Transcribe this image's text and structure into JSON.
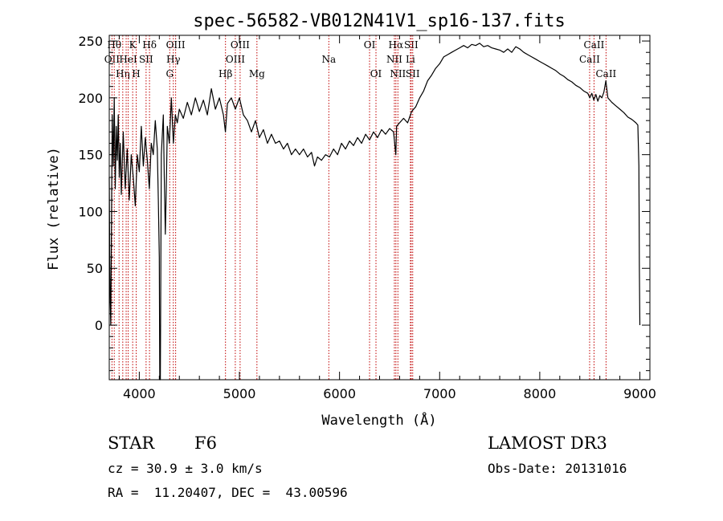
{
  "chart_data": {
    "type": "line",
    "title": "spec-56582-VB012N41V1_sp16-137.fits",
    "xlabel": "Wavelength (Å)",
    "ylabel": "Flux (relative)",
    "xlim": [
      3700,
      9100
    ],
    "ylim": [
      -48,
      255
    ],
    "x_ticks": [
      4000,
      5000,
      6000,
      7000,
      8000,
      9000
    ],
    "y_ticks": [
      0,
      50,
      100,
      150,
      200,
      250
    ],
    "series": [
      {
        "name": "flux",
        "points": [
          [
            3700,
            130
          ],
          [
            3705,
            60
          ],
          [
            3710,
            20
          ],
          [
            3715,
            0
          ],
          [
            3720,
            60
          ],
          [
            3730,
            185
          ],
          [
            3740,
            140
          ],
          [
            3750,
            200
          ],
          [
            3760,
            120
          ],
          [
            3770,
            175
          ],
          [
            3780,
            145
          ],
          [
            3790,
            185
          ],
          [
            3800,
            130
          ],
          [
            3810,
            160
          ],
          [
            3820,
            115
          ],
          [
            3840,
            170
          ],
          [
            3860,
            120
          ],
          [
            3880,
            155
          ],
          [
            3900,
            110
          ],
          [
            3920,
            150
          ],
          [
            3940,
            130
          ],
          [
            3960,
            105
          ],
          [
            3980,
            150
          ],
          [
            4000,
            135
          ],
          [
            4020,
            175
          ],
          [
            4040,
            140
          ],
          [
            4060,
            165
          ],
          [
            4080,
            145
          ],
          [
            4100,
            120
          ],
          [
            4120,
            160
          ],
          [
            4140,
            150
          ],
          [
            4160,
            180
          ],
          [
            4180,
            155
          ],
          [
            4190,
            110
          ],
          [
            4200,
            60
          ],
          [
            4205,
            -48
          ],
          [
            4210,
            -48
          ],
          [
            4215,
            50
          ],
          [
            4220,
            150
          ],
          [
            4240,
            185
          ],
          [
            4250,
            130
          ],
          [
            4260,
            80
          ],
          [
            4270,
            120
          ],
          [
            4280,
            175
          ],
          [
            4300,
            160
          ],
          [
            4320,
            200
          ],
          [
            4340,
            160
          ],
          [
            4360,
            185
          ],
          [
            4380,
            178
          ],
          [
            4400,
            190
          ],
          [
            4440,
            182
          ],
          [
            4480,
            196
          ],
          [
            4520,
            185
          ],
          [
            4560,
            200
          ],
          [
            4600,
            188
          ],
          [
            4640,
            198
          ],
          [
            4680,
            185
          ],
          [
            4720,
            208
          ],
          [
            4760,
            190
          ],
          [
            4800,
            200
          ],
          [
            4840,
            185
          ],
          [
            4860,
            170
          ],
          [
            4880,
            195
          ],
          [
            4920,
            200
          ],
          [
            4960,
            190
          ],
          [
            5000,
            200
          ],
          [
            5040,
            185
          ],
          [
            5080,
            180
          ],
          [
            5120,
            170
          ],
          [
            5160,
            180
          ],
          [
            5200,
            165
          ],
          [
            5240,
            172
          ],
          [
            5280,
            160
          ],
          [
            5320,
            168
          ],
          [
            5360,
            160
          ],
          [
            5400,
            162
          ],
          [
            5440,
            155
          ],
          [
            5480,
            160
          ],
          [
            5520,
            150
          ],
          [
            5560,
            155
          ],
          [
            5600,
            150
          ],
          [
            5640,
            155
          ],
          [
            5680,
            148
          ],
          [
            5720,
            152
          ],
          [
            5750,
            140
          ],
          [
            5780,
            148
          ],
          [
            5820,
            145
          ],
          [
            5860,
            150
          ],
          [
            5900,
            148
          ],
          [
            5940,
            155
          ],
          [
            5980,
            150
          ],
          [
            6020,
            160
          ],
          [
            6060,
            155
          ],
          [
            6100,
            162
          ],
          [
            6140,
            158
          ],
          [
            6180,
            165
          ],
          [
            6220,
            160
          ],
          [
            6260,
            168
          ],
          [
            6300,
            163
          ],
          [
            6340,
            170
          ],
          [
            6380,
            165
          ],
          [
            6420,
            172
          ],
          [
            6460,
            168
          ],
          [
            6500,
            173
          ],
          [
            6540,
            170
          ],
          [
            6562,
            150
          ],
          [
            6570,
            175
          ],
          [
            6600,
            178
          ],
          [
            6640,
            182
          ],
          [
            6680,
            178
          ],
          [
            6720,
            188
          ],
          [
            6760,
            192
          ],
          [
            6800,
            200
          ],
          [
            6840,
            206
          ],
          [
            6880,
            215
          ],
          [
            6920,
            220
          ],
          [
            6960,
            226
          ],
          [
            7000,
            230
          ],
          [
            7040,
            236
          ],
          [
            7080,
            238
          ],
          [
            7120,
            240
          ],
          [
            7160,
            242
          ],
          [
            7200,
            244
          ],
          [
            7240,
            246
          ],
          [
            7280,
            244
          ],
          [
            7320,
            247
          ],
          [
            7360,
            246
          ],
          [
            7400,
            248
          ],
          [
            7440,
            245
          ],
          [
            7480,
            246
          ],
          [
            7520,
            244
          ],
          [
            7560,
            243
          ],
          [
            7600,
            242
          ],
          [
            7640,
            240
          ],
          [
            7680,
            243
          ],
          [
            7720,
            240
          ],
          [
            7760,
            245
          ],
          [
            7800,
            243
          ],
          [
            7840,
            240
          ],
          [
            7880,
            238
          ],
          [
            7920,
            236
          ],
          [
            7960,
            234
          ],
          [
            8000,
            232
          ],
          [
            8040,
            230
          ],
          [
            8080,
            228
          ],
          [
            8120,
            226
          ],
          [
            8160,
            224
          ],
          [
            8200,
            221
          ],
          [
            8240,
            219
          ],
          [
            8280,
            216
          ],
          [
            8320,
            214
          ],
          [
            8360,
            211
          ],
          [
            8400,
            209
          ],
          [
            8440,
            206
          ],
          [
            8480,
            204
          ],
          [
            8500,
            200
          ],
          [
            8520,
            204
          ],
          [
            8540,
            198
          ],
          [
            8560,
            203
          ],
          [
            8580,
            197
          ],
          [
            8600,
            202
          ],
          [
            8620,
            200
          ],
          [
            8640,
            205
          ],
          [
            8660,
            215
          ],
          [
            8680,
            200
          ],
          [
            8720,
            196
          ],
          [
            8760,
            193
          ],
          [
            8800,
            190
          ],
          [
            8840,
            187
          ],
          [
            8880,
            183
          ],
          [
            8920,
            181
          ],
          [
            8960,
            178
          ],
          [
            8980,
            176
          ],
          [
            8990,
            140
          ],
          [
            8995,
            50
          ],
          [
            9000,
            0
          ]
        ]
      }
    ],
    "line_markers": [
      {
        "wave": 3727,
        "label": "OII",
        "row": 2
      },
      {
        "wave": 3750,
        "label": "Hθ",
        "row": 1
      },
      {
        "wave": 3798,
        "label": "",
        "row": 0
      },
      {
        "wave": 3835,
        "label": "Hη",
        "row": 3
      },
      {
        "wave": 3869,
        "label": "",
        "row": 0
      },
      {
        "wave": 3889,
        "label": "HeI",
        "row": 2
      },
      {
        "wave": 3934,
        "label": "K",
        "row": 1
      },
      {
        "wave": 3969,
        "label": "H",
        "row": 3
      },
      {
        "wave": 4068,
        "label": "SII",
        "row": 2
      },
      {
        "wave": 4102,
        "label": "Hδ",
        "row": 1
      },
      {
        "wave": 4304,
        "label": "G",
        "row": 3
      },
      {
        "wave": 4340,
        "label": "Hγ",
        "row": 2
      },
      {
        "wave": 4363,
        "label": "OIII",
        "row": 1
      },
      {
        "wave": 4861,
        "label": "Hβ",
        "row": 3
      },
      {
        "wave": 4959,
        "label": "OIII",
        "row": 2
      },
      {
        "wave": 5007,
        "label": "OIII",
        "row": 1
      },
      {
        "wave": 5175,
        "label": "Mg",
        "row": 3
      },
      {
        "wave": 5893,
        "label": "Na",
        "row": 2
      },
      {
        "wave": 6300,
        "label": "OI",
        "row": 1
      },
      {
        "wave": 6364,
        "label": "OI",
        "row": 3
      },
      {
        "wave": 6548,
        "label": "NII",
        "row": 2
      },
      {
        "wave": 6563,
        "label": "Hα",
        "row": 1
      },
      {
        "wave": 6583,
        "label": "NII",
        "row": 3
      },
      {
        "wave": 6708,
        "label": "Li",
        "row": 2
      },
      {
        "wave": 6716,
        "label": "SII",
        "row": 1
      },
      {
        "wave": 6731,
        "label": "SII",
        "row": 3
      },
      {
        "wave": 8498,
        "label": "CaII",
        "row": 2
      },
      {
        "wave": 8542,
        "label": "CaII",
        "row": 1
      },
      {
        "wave": 8662,
        "label": "CaII",
        "row": 3
      }
    ]
  },
  "info": {
    "object_class": "STAR",
    "subclass": "F6",
    "redshift": "cz = 30.9 ± 3.0 km/s",
    "coordinates": "RA =  11.20407, DEC =  43.00596",
    "survey": "LAMOST DR3",
    "obs_date": "Obs-Date: 20131016"
  }
}
